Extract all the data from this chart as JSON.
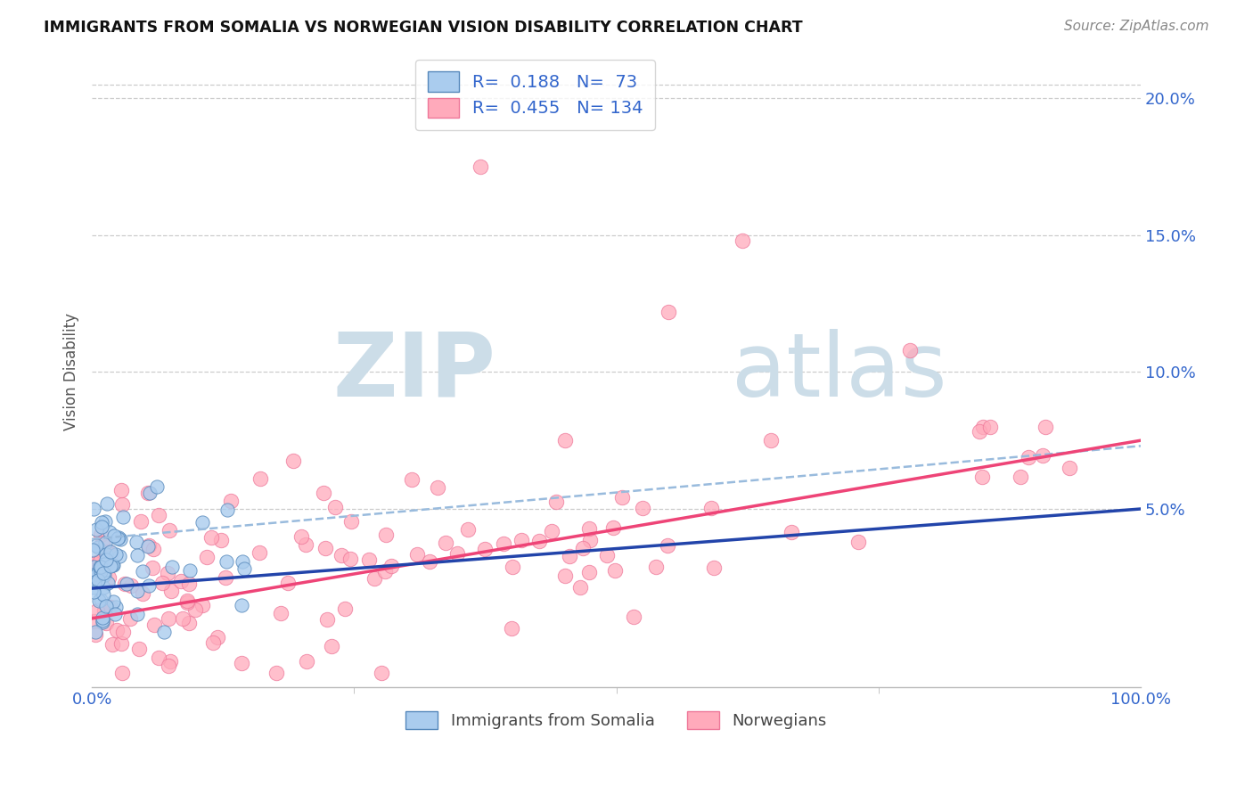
{
  "title": "IMMIGRANTS FROM SOMALIA VS NORWEGIAN VISION DISABILITY CORRELATION CHART",
  "source": "Source: ZipAtlas.com",
  "ylabel": "Vision Disability",
  "xlim": [
    0.0,
    1.0
  ],
  "ylim": [
    -0.015,
    0.215
  ],
  "xtick_labels": [
    "0.0%",
    "100.0%"
  ],
  "xtick_positions": [
    0.0,
    1.0
  ],
  "xtick_minor": [
    0.25,
    0.5,
    0.75
  ],
  "ytick_labels": [
    "5.0%",
    "10.0%",
    "15.0%",
    "20.0%"
  ],
  "ytick_positions": [
    0.05,
    0.1,
    0.15,
    0.2
  ],
  "background_color": "#ffffff",
  "grid_color": "#cccccc",
  "somalia_color": "#aaccee",
  "norwegian_color": "#ffaabb",
  "somalia_edge_color": "#5588bb",
  "norwegian_edge_color": "#ee7799",
  "somalia_line_color": "#2244aa",
  "norwegian_line_color": "#ee4477",
  "dash_line_color": "#99bbdd",
  "legend_text_color": "#3366cc",
  "legend_r1": "R=  0.188",
  "legend_n1": "N=  73",
  "legend_r2": "R=  0.455",
  "legend_n2": "N= 134",
  "watermark_zip": "ZIP",
  "watermark_atlas": "atlas",
  "watermark_color": "#ccdde8",
  "bottom_legend_color": "#444444"
}
